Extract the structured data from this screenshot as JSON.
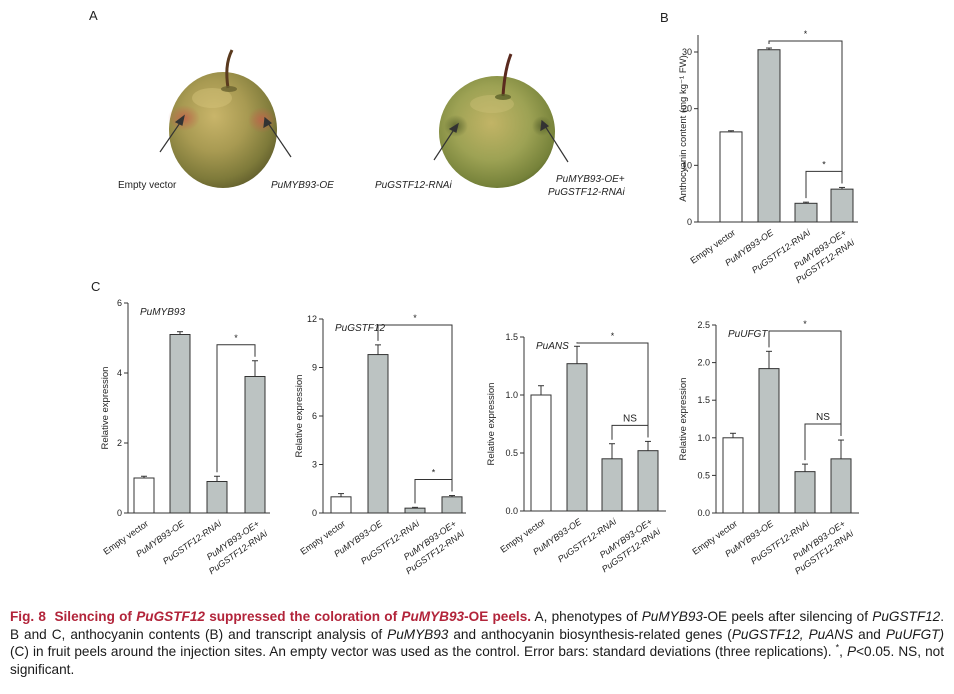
{
  "panels": {
    "A": "A",
    "B": "B",
    "C": "C"
  },
  "photo": {
    "labels": [
      "Empty vector",
      "PuMYB93-OE",
      "PuGSTF12-RNAi",
      "PuMYB93-OE+",
      "PuGSTF12-RNAi"
    ]
  },
  "colors": {
    "bar_empty": "#ffffff",
    "bar_filled": "#bcc3c2",
    "axis": "#333333",
    "caption_title": "#b2243a"
  },
  "chart_data": [
    {
      "id": "B",
      "type": "bar",
      "title": "",
      "ylabel": "Anthocyanin content (mg kg⁻¹ FW)",
      "xlabel": "",
      "categories": [
        "Empty vector",
        "PuMYB93-OE",
        "PuGSTF12-RNAi",
        "PuMYB93-OE+\nPuGSTF12-RNAi"
      ],
      "values": [
        15.9,
        30.4,
        3.3,
        5.8
      ],
      "errors": [
        0.2,
        0.3,
        0.2,
        0.3
      ],
      "ylim": [
        0,
        33
      ],
      "yticks": [
        0,
        10,
        20,
        30
      ],
      "fills": [
        "empty",
        "filled",
        "filled",
        "filled"
      ],
      "brackets": [
        {
          "from": 1,
          "to": 3,
          "label": "*"
        },
        {
          "from": 2,
          "to": 3,
          "label": "*"
        }
      ]
    },
    {
      "id": "C1",
      "type": "bar",
      "title": "PuMYB93",
      "ylabel": "Relative expression",
      "xlabel": "",
      "categories": [
        "Empty vector",
        "PuMYB93-OE",
        "PuGSTF12-RNAi",
        "PuMYB93-OE+\nPuGSTF12-RNAi"
      ],
      "values": [
        1.0,
        5.1,
        0.9,
        3.9
      ],
      "errors": [
        0.05,
        0.08,
        0.15,
        0.45
      ],
      "ylim": [
        0,
        6
      ],
      "yticks": [
        0,
        2,
        4,
        6
      ],
      "fills": [
        "empty",
        "filled",
        "filled",
        "filled"
      ],
      "brackets": [
        {
          "from": 2,
          "to": 3,
          "label": "*"
        }
      ]
    },
    {
      "id": "C2",
      "type": "bar",
      "title": "PuGSTF12",
      "ylabel": "Relative expression",
      "xlabel": "",
      "categories": [
        "Empty vector",
        "PuMYB93-OE",
        "PuGSTF12-RNAi",
        "PuMYB93-OE+\nPuGSTF12-RNAi"
      ],
      "values": [
        1.0,
        9.8,
        0.3,
        1.0
      ],
      "errors": [
        0.2,
        0.6,
        0.05,
        0.08
      ],
      "ylim": [
        0,
        12
      ],
      "yticks": [
        0,
        3,
        6,
        9,
        12
      ],
      "fills": [
        "empty",
        "filled",
        "filled",
        "filled"
      ],
      "brackets": [
        {
          "from": 1,
          "to": 3,
          "label": "*"
        },
        {
          "from": 2,
          "to": 3,
          "label": "*"
        }
      ]
    },
    {
      "id": "C3",
      "type": "bar",
      "title": "PuANS",
      "ylabel": "Relative expression",
      "xlabel": "",
      "categories": [
        "Empty vector",
        "PuMYB93-OE",
        "PuGSTF12-RNAi",
        "PuMYB93-OE+\nPuGSTF12-RNAi"
      ],
      "values": [
        1.0,
        1.27,
        0.45,
        0.52
      ],
      "errors": [
        0.08,
        0.15,
        0.13,
        0.08
      ],
      "ylim": [
        0,
        1.5
      ],
      "yticks": [
        0.0,
        0.5,
        1.0,
        1.5
      ],
      "fills": [
        "empty",
        "filled",
        "filled",
        "filled"
      ],
      "brackets": [
        {
          "from": 1,
          "to": 3,
          "label": "*"
        },
        {
          "from": 2,
          "to": 3,
          "label": "NS"
        }
      ]
    },
    {
      "id": "C4",
      "type": "bar",
      "title": "PuUFGT",
      "ylabel": "Relative expression",
      "xlabel": "",
      "categories": [
        "Empty vector",
        "PuMYB93-OE",
        "PuGSTF12-RNAi",
        "PuMYB93-OE+\nPuGSTF12-RNAi"
      ],
      "values": [
        1.0,
        1.92,
        0.55,
        0.72
      ],
      "errors": [
        0.06,
        0.23,
        0.1,
        0.25
      ],
      "ylim": [
        0,
        2.5
      ],
      "yticks": [
        0.0,
        0.5,
        1.0,
        1.5,
        2.0,
        2.5
      ],
      "fills": [
        "empty",
        "filled",
        "filled",
        "filled"
      ],
      "brackets": [
        {
          "from": 1,
          "to": 3,
          "label": "*"
        },
        {
          "from": 2,
          "to": 3,
          "label": "NS"
        }
      ]
    }
  ],
  "caption": {
    "fig_number": "Fig. 8",
    "title_a": "Silencing of ",
    "title_gene1": "PuGSTF12",
    "title_b": " suppressed the coloration of ",
    "title_gene2": "PuMYB93",
    "title_c": "-OE peels.",
    "t1": " A, phenotypes of ",
    "g1": "PuMYB93",
    "t2": "-OE peels after silencing of ",
    "g2": "PuGSTF12",
    "t3": ". B and C, anthocyanin contents (B) and transcript analysis of ",
    "g3": "PuMYB93",
    "t4": " and anthocyanin biosynthesis-related genes (",
    "g4": "PuGSTF12, PuANS",
    "t5": " and ",
    "g5": "PuUFGT)",
    "t6": " (C) in fruit peels around the injection sites. An empty vector was used as the control. Error bars: standard deviations (three replications). ",
    "star": "*",
    "t7": ", ",
    "p": "P",
    "t8": "<0.05. NS, not significant."
  }
}
